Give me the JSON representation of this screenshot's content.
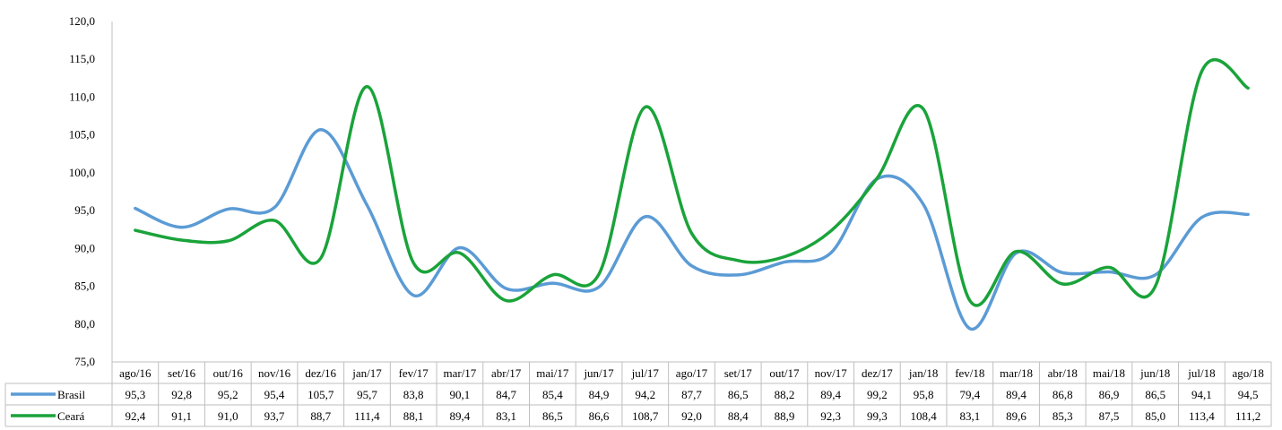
{
  "chart_data": {
    "type": "line",
    "title": "",
    "xlabel": "",
    "ylabel": "",
    "ylim": [
      75.0,
      120.0
    ],
    "y_ticks": [
      "75,0",
      "80,0",
      "85,0",
      "90,0",
      "95,0",
      "100,0",
      "105,0",
      "110,0",
      "115,0",
      "120,0"
    ],
    "grid": false,
    "legend": "data-table",
    "categories": [
      "ago/16",
      "set/16",
      "out/16",
      "nov/16",
      "dez/16",
      "jan/17",
      "fev/17",
      "mar/17",
      "abr/17",
      "mai/17",
      "jun/17",
      "jul/17",
      "ago/17",
      "set/17",
      "out/17",
      "nov/17",
      "dez/17",
      "jan/18",
      "fev/18",
      "mar/18",
      "abr/18",
      "mai/18",
      "jun/18",
      "jul/18",
      "ago/18"
    ],
    "series": [
      {
        "name": "Brasil",
        "color": "#5b9bd5",
        "values": [
          95.3,
          92.8,
          95.2,
          95.4,
          105.7,
          95.7,
          83.8,
          90.1,
          84.7,
          85.4,
          84.9,
          94.2,
          87.7,
          86.5,
          88.2,
          89.4,
          99.2,
          95.8,
          79.4,
          89.4,
          86.8,
          86.9,
          86.5,
          94.1,
          94.5
        ],
        "labels": [
          "95,3",
          "92,8",
          "95,2",
          "95,4",
          "105,7",
          "95,7",
          "83,8",
          "90,1",
          "84,7",
          "85,4",
          "84,9",
          "94,2",
          "87,7",
          "86,5",
          "88,2",
          "89,4",
          "99,2",
          "95,8",
          "79,4",
          "89,4",
          "86,8",
          "86,9",
          "86,5",
          "94,1",
          "94,5"
        ]
      },
      {
        "name": "Ceará",
        "color": "#1aa33a",
        "values": [
          92.4,
          91.1,
          91.0,
          93.7,
          88.7,
          111.4,
          88.1,
          89.4,
          83.1,
          86.5,
          86.6,
          108.7,
          92.0,
          88.4,
          88.9,
          92.3,
          99.3,
          108.4,
          83.1,
          89.6,
          85.3,
          87.5,
          85.0,
          113.4,
          111.2
        ],
        "labels": [
          "92,4",
          "91,1",
          "91,0",
          "93,7",
          "88,7",
          "111,4",
          "88,1",
          "89,4",
          "83,1",
          "86,5",
          "86,6",
          "108,7",
          "92,0",
          "88,4",
          "88,9",
          "92,3",
          "99,3",
          "108,4",
          "83,1",
          "89,6",
          "85,3",
          "87,5",
          "85,0",
          "113,4",
          "111,2"
        ]
      }
    ]
  }
}
